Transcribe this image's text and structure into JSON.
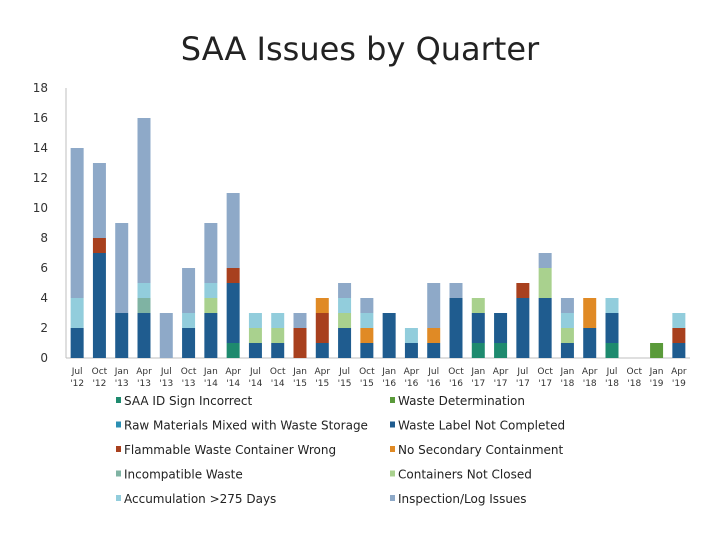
{
  "chart_data": {
    "type": "bar",
    "stacked": true,
    "title": "SAA Issues by Quarter",
    "xlabel": "",
    "ylabel": "",
    "ylim": [
      0,
      18
    ],
    "yticks": [
      0,
      2,
      4,
      6,
      8,
      10,
      12,
      14,
      16,
      18
    ],
    "grid": false,
    "legend_position": "bottom",
    "categories": [
      [
        "Jul",
        "'12"
      ],
      [
        "Oct",
        "'12"
      ],
      [
        "Jan",
        "'13"
      ],
      [
        "Apr",
        "'13"
      ],
      [
        "Jul",
        "'13"
      ],
      [
        "Oct",
        "'13"
      ],
      [
        "Jan",
        "'14"
      ],
      [
        "Apr",
        "'14"
      ],
      [
        "Jul",
        "'14"
      ],
      [
        "Oct",
        "'14"
      ],
      [
        "Jan",
        "'15"
      ],
      [
        "Apr",
        "'15"
      ],
      [
        "Jul",
        "'15"
      ],
      [
        "Oct",
        "'15"
      ],
      [
        "Jan",
        "'16"
      ],
      [
        "Apr",
        "'16"
      ],
      [
        "Jul",
        "'16"
      ],
      [
        "Oct",
        "'16"
      ],
      [
        "Jan",
        "'17"
      ],
      [
        "Apr",
        "'17"
      ],
      [
        "Jul",
        "'17"
      ],
      [
        "Oct",
        "'17"
      ],
      [
        "Jan",
        "'18"
      ],
      [
        "Apr",
        "'18"
      ],
      [
        "Jul",
        "'18"
      ],
      [
        "Oct",
        "'18"
      ],
      [
        "Jan",
        "'19"
      ],
      [
        "Apr",
        "'19"
      ]
    ],
    "series": [
      {
        "name": "SAA ID Sign Incorrect",
        "color": "#1e8a6e",
        "values": [
          0,
          0,
          0,
          0,
          0,
          0,
          0,
          1,
          0,
          0,
          0,
          0,
          0,
          0,
          0,
          0,
          0,
          0,
          1,
          1,
          0,
          0,
          0,
          0,
          1,
          0,
          0,
          0
        ]
      },
      {
        "name": "Waste Determination",
        "color": "#5a9a3a",
        "values": [
          0,
          0,
          0,
          0,
          0,
          0,
          0,
          0,
          0,
          0,
          0,
          0,
          0,
          0,
          0,
          0,
          0,
          0,
          0,
          0,
          0,
          0,
          0,
          0,
          0,
          0,
          1,
          0
        ]
      },
      {
        "name": "Raw Materials Mixed with Waste Storage",
        "color": "#2b8fb3",
        "values": [
          0,
          0,
          0,
          0,
          0,
          0,
          0,
          0,
          0,
          0,
          0,
          0,
          0,
          0,
          0,
          0,
          0,
          0,
          0,
          0,
          0,
          0,
          0,
          0,
          0,
          0,
          0,
          0
        ]
      },
      {
        "name": "Waste Label Not Completed",
        "color": "#1f5c8f",
        "values": [
          2,
          7,
          3,
          3,
          0,
          2,
          3,
          4,
          1,
          1,
          0,
          1,
          2,
          1,
          3,
          1,
          1,
          4,
          2,
          2,
          4,
          4,
          1,
          2,
          2,
          0,
          0,
          1
        ]
      },
      {
        "name": "Flammable Waste Container Wrong",
        "color": "#a8401e",
        "values": [
          0,
          1,
          0,
          0,
          0,
          0,
          0,
          1,
          0,
          0,
          2,
          2,
          0,
          0,
          0,
          0,
          0,
          0,
          0,
          0,
          1,
          0,
          0,
          0,
          0,
          0,
          0,
          1
        ]
      },
      {
        "name": "No Secondary Containment",
        "color": "#e08a25",
        "values": [
          0,
          0,
          0,
          0,
          0,
          0,
          0,
          0,
          0,
          0,
          0,
          1,
          0,
          1,
          0,
          0,
          1,
          0,
          0,
          0,
          0,
          0,
          0,
          2,
          0,
          0,
          0,
          0
        ]
      },
      {
        "name": "Incompatible Waste",
        "color": "#7fb3a3",
        "values": [
          0,
          0,
          0,
          1,
          0,
          0,
          0,
          0,
          0,
          0,
          0,
          0,
          0,
          0,
          0,
          0,
          0,
          0,
          0,
          0,
          0,
          0,
          0,
          0,
          0,
          0,
          0,
          0
        ]
      },
      {
        "name": "Containers Not Closed",
        "color": "#a9d18e",
        "values": [
          0,
          0,
          0,
          0,
          0,
          0,
          1,
          0,
          1,
          1,
          0,
          0,
          1,
          0,
          0,
          0,
          0,
          0,
          1,
          0,
          0,
          2,
          1,
          0,
          0,
          0,
          0,
          0
        ]
      },
      {
        "name": "Accumulation >275 Days",
        "color": "#92cddc",
        "values": [
          2,
          0,
          0,
          1,
          0,
          1,
          1,
          0,
          1,
          1,
          0,
          0,
          1,
          1,
          0,
          1,
          0,
          0,
          0,
          0,
          0,
          0,
          1,
          0,
          1,
          0,
          0,
          1
        ]
      },
      {
        "name": "Inspection/Log Issues",
        "color": "#8ea9c8",
        "values": [
          10,
          5,
          6,
          11,
          3,
          3,
          4,
          5,
          0,
          0,
          1,
          0,
          1,
          1,
          0,
          0,
          3,
          1,
          0,
          0,
          0,
          1,
          1,
          0,
          0,
          0,
          0,
          0
        ]
      }
    ]
  }
}
